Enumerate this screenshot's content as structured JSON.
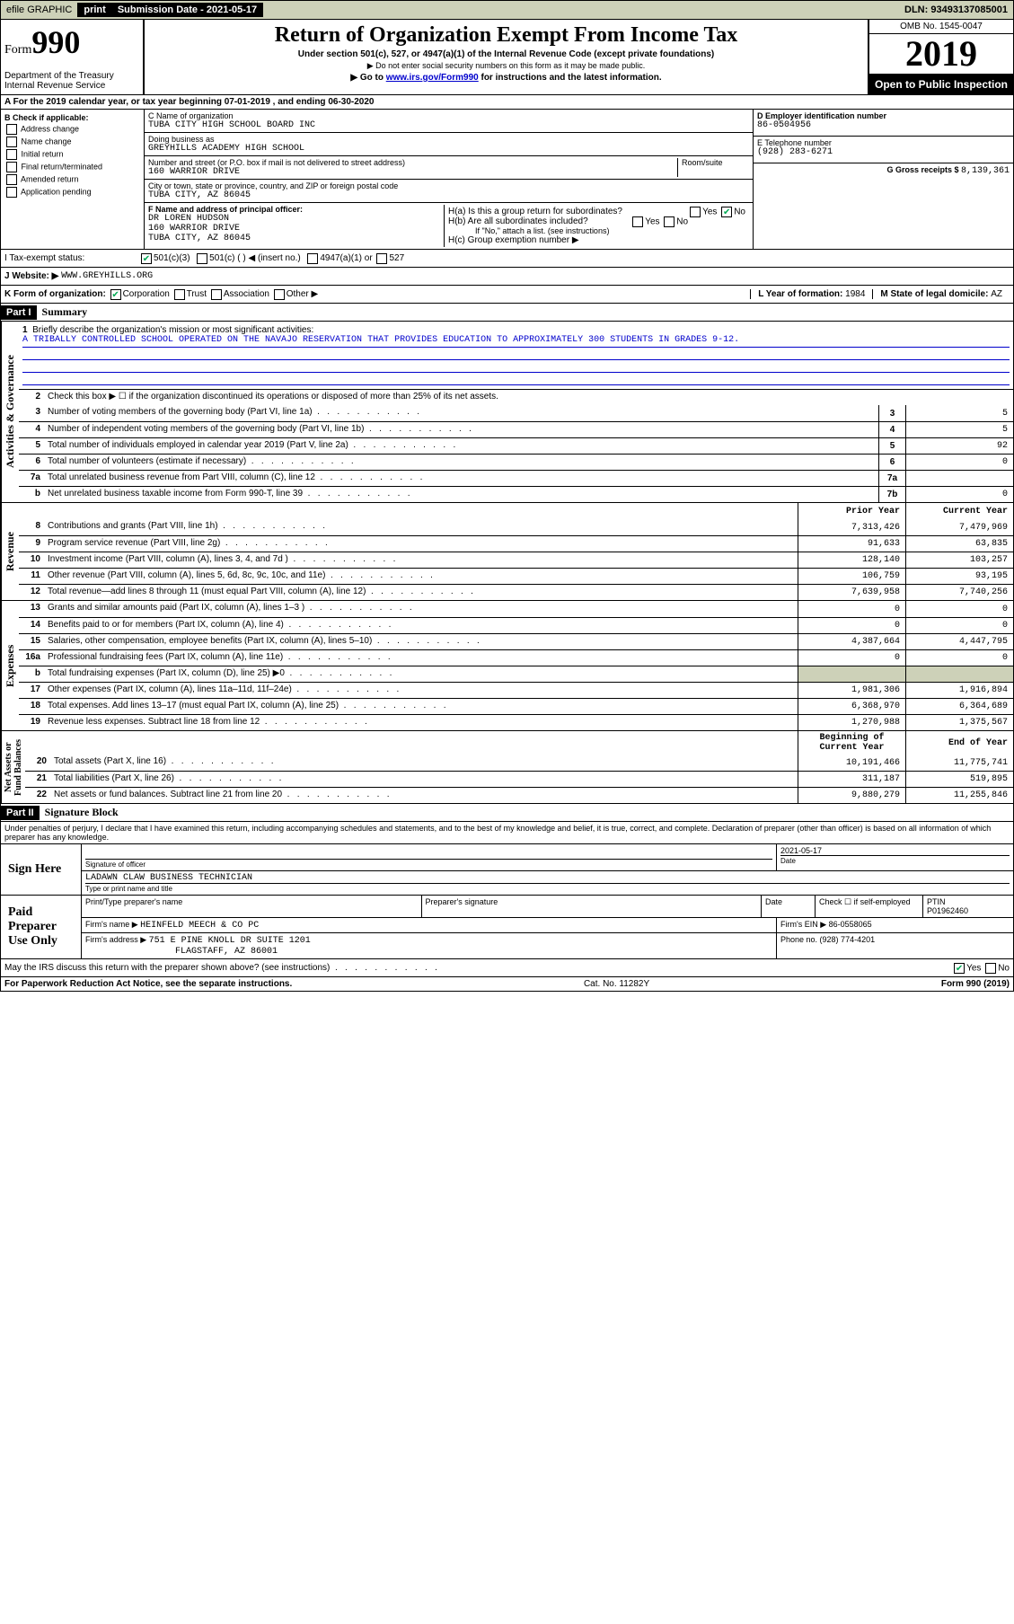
{
  "topbar": {
    "efile": "efile GRAPHIC",
    "print": "print",
    "sub_label": "Submission Date - ",
    "sub_date": "2021-05-17",
    "dln": "DLN: 93493137085001"
  },
  "header": {
    "form_prefix": "Form",
    "form_num": "990",
    "dept": "Department of the Treasury\nInternal Revenue Service",
    "title": "Return of Organization Exempt From Income Tax",
    "sub1": "Under section 501(c), 527, or 4947(a)(1) of the Internal Revenue Code (except private foundations)",
    "sub2": "▶ Do not enter social security numbers on this form as it may be made public.",
    "sub3_pre": "▶ Go to ",
    "sub3_link": "www.irs.gov/Form990",
    "sub3_post": " for instructions and the latest information.",
    "omb": "OMB No. 1545-0047",
    "year": "2019",
    "open": "Open to Public Inspection"
  },
  "period": "A For the 2019 calendar year, or tax year beginning 07-01-2019   , and ending 06-30-2020",
  "boxB": {
    "label": "B Check if applicable:",
    "items": [
      "Address change",
      "Name change",
      "Initial return",
      "Final return/terminated",
      "Amended return",
      "Application pending"
    ]
  },
  "org": {
    "c_label": "C Name of organization",
    "c_val": "TUBA CITY HIGH SCHOOL BOARD INC",
    "dba_label": "Doing business as",
    "dba_val": "GREYHILLS ACADEMY HIGH SCHOOL",
    "addr_label": "Number and street (or P.O. box if mail is not delivered to street address)",
    "room_label": "Room/suite",
    "addr_val": "160 WARRIOR DRIVE",
    "city_label": "City or town, state or province, country, and ZIP or foreign postal code",
    "city_val": "TUBA CITY, AZ  86045",
    "f_label": "F Name and address of principal officer:",
    "f_val": "DR LOREN HUDSON\n160 WARRIOR DRIVE\nTUBA CITY, AZ  86045"
  },
  "right": {
    "d_label": "D Employer identification number",
    "d_val": "86-0504956",
    "e_label": "E Telephone number",
    "e_val": "(928) 283-6271",
    "g_label": "G Gross receipts $ ",
    "g_val": "8,139,361",
    "ha": "H(a)  Is this a group return for subordinates?",
    "hb": "H(b)  Are all subordinates included?",
    "hb_note": "If \"No,\" attach a list. (see instructions)",
    "hc": "H(c)  Group exemption number ▶",
    "yes": "Yes",
    "no": "No"
  },
  "rows": {
    "i_label": "I Tax-exempt status:",
    "i_501c3": "501(c)(3)",
    "i_501c": "501(c) (   ) ◀ (insert no.)",
    "i_4947": "4947(a)(1) or",
    "i_527": "527",
    "j_label": "J Website: ▶",
    "j_val": "WWW.GREYHILLS.ORG",
    "k_label": "K Form of organization:",
    "k_corp": "Corporation",
    "k_trust": "Trust",
    "k_assoc": "Association",
    "k_other": "Other ▶",
    "l_label": "L Year of formation: ",
    "l_val": "1984",
    "m_label": "M State of legal domicile: ",
    "m_val": "AZ"
  },
  "part1": {
    "hdr": "Part I",
    "title": "Summary",
    "l1": "Briefly describe the organization's mission or most significant activities:",
    "mission": "A TRIBALLY CONTROLLED SCHOOL OPERATED ON THE NAVAJO RESERVATION THAT PROVIDES EDUCATION TO APPROXIMATELY 300 STUDENTS IN GRADES 9-12.",
    "l2": "Check this box ▶ ☐  if the organization discontinued its operations or disposed of more than 25% of its net assets."
  },
  "ag_label": "Activities & Governance",
  "ag": [
    {
      "n": "3",
      "t": "Number of voting members of the governing body (Part VI, line 1a)",
      "b": "3",
      "v": "5"
    },
    {
      "n": "4",
      "t": "Number of independent voting members of the governing body (Part VI, line 1b)",
      "b": "4",
      "v": "5"
    },
    {
      "n": "5",
      "t": "Total number of individuals employed in calendar year 2019 (Part V, line 2a)",
      "b": "5",
      "v": "92"
    },
    {
      "n": "6",
      "t": "Total number of volunteers (estimate if necessary)",
      "b": "6",
      "v": "0"
    },
    {
      "n": "7a",
      "t": "Total unrelated business revenue from Part VIII, column (C), line 12",
      "b": "7a",
      "v": ""
    },
    {
      "n": "b",
      "t": "Net unrelated business taxable income from Form 990-T, line 39",
      "b": "7b",
      "v": "0"
    }
  ],
  "pycy": {
    "prior": "Prior Year",
    "current": "Current Year"
  },
  "rev_label": "Revenue",
  "rev": [
    {
      "n": "8",
      "t": "Contributions and grants (Part VIII, line 1h)",
      "p": "7,313,426",
      "c": "7,479,969"
    },
    {
      "n": "9",
      "t": "Program service revenue (Part VIII, line 2g)",
      "p": "91,633",
      "c": "63,835"
    },
    {
      "n": "10",
      "t": "Investment income (Part VIII, column (A), lines 3, 4, and 7d )",
      "p": "128,140",
      "c": "103,257"
    },
    {
      "n": "11",
      "t": "Other revenue (Part VIII, column (A), lines 5, 6d, 8c, 9c, 10c, and 11e)",
      "p": "106,759",
      "c": "93,195"
    },
    {
      "n": "12",
      "t": "Total revenue—add lines 8 through 11 (must equal Part VIII, column (A), line 12)",
      "p": "7,639,958",
      "c": "7,740,256"
    }
  ],
  "exp_label": "Expenses",
  "exp": [
    {
      "n": "13",
      "t": "Grants and similar amounts paid (Part IX, column (A), lines 1–3 )",
      "p": "0",
      "c": "0"
    },
    {
      "n": "14",
      "t": "Benefits paid to or for members (Part IX, column (A), line 4)",
      "p": "0",
      "c": "0"
    },
    {
      "n": "15",
      "t": "Salaries, other compensation, employee benefits (Part IX, column (A), lines 5–10)",
      "p": "4,387,664",
      "c": "4,447,795"
    },
    {
      "n": "16a",
      "t": "Professional fundraising fees (Part IX, column (A), line 11e)",
      "p": "0",
      "c": "0"
    },
    {
      "n": "b",
      "t": "Total fundraising expenses (Part IX, column (D), line 25) ▶0",
      "p": "",
      "c": "",
      "shade": true
    },
    {
      "n": "17",
      "t": "Other expenses (Part IX, column (A), lines 11a–11d, 11f–24e)",
      "p": "1,981,306",
      "c": "1,916,894"
    },
    {
      "n": "18",
      "t": "Total expenses. Add lines 13–17 (must equal Part IX, column (A), line 25)",
      "p": "6,368,970",
      "c": "6,364,689"
    },
    {
      "n": "19",
      "t": "Revenue less expenses. Subtract line 18 from line 12",
      "p": "1,270,988",
      "c": "1,375,567"
    }
  ],
  "na_label": "Net Assets or\nFund Balances",
  "na_hdr": {
    "p": "Beginning of Current Year",
    "c": "End of Year"
  },
  "na": [
    {
      "n": "20",
      "t": "Total assets (Part X, line 16)",
      "p": "10,191,466",
      "c": "11,775,741"
    },
    {
      "n": "21",
      "t": "Total liabilities (Part X, line 26)",
      "p": "311,187",
      "c": "519,895"
    },
    {
      "n": "22",
      "t": "Net assets or fund balances. Subtract line 21 from line 20",
      "p": "9,880,279",
      "c": "11,255,846"
    }
  ],
  "part2": {
    "hdr": "Part II",
    "title": "Signature Block",
    "decl": "Under penalties of perjury, I declare that I have examined this return, including accompanying schedules and statements, and to the best of my knowledge and belief, it is true, correct, and complete. Declaration of preparer (other than officer) is based on all information of which preparer has any knowledge."
  },
  "sign": {
    "here": "Sign Here",
    "sig_officer": "Signature of officer",
    "date_label": "Date",
    "date_val": "2021-05-17",
    "name_val": "LADAWN CLAW  BUSINESS TECHNICIAN",
    "name_label": "Type or print name and title"
  },
  "prep": {
    "label": "Paid Preparer Use Only",
    "c1": "Print/Type preparer's name",
    "c2": "Preparer's signature",
    "c3": "Date",
    "c4a": "Check ☐ if self-employed",
    "c4b": "PTIN",
    "ptin": "P01962460",
    "firm_label": "Firm's name    ▶",
    "firm_val": "HEINFELD MEECH & CO PC",
    "ein_label": "Firm's EIN ▶ ",
    "ein_val": "86-0558065",
    "addr_label": "Firm's address ▶",
    "addr_val": "751 E PINE KNOLL DR SUITE 1201",
    "addr_val2": "FLAGSTAFF, AZ  86001",
    "phone_label": "Phone no. ",
    "phone_val": "(928) 774-4201",
    "discuss": "May the IRS discuss this return with the preparer shown above? (see instructions)"
  },
  "footer": {
    "left": "For Paperwork Reduction Act Notice, see the separate instructions.",
    "mid": "Cat. No. 11282Y",
    "right": "Form 990 (2019)"
  },
  "colors": {
    "shade": "#cdd1b8",
    "link": "#0000cc"
  }
}
